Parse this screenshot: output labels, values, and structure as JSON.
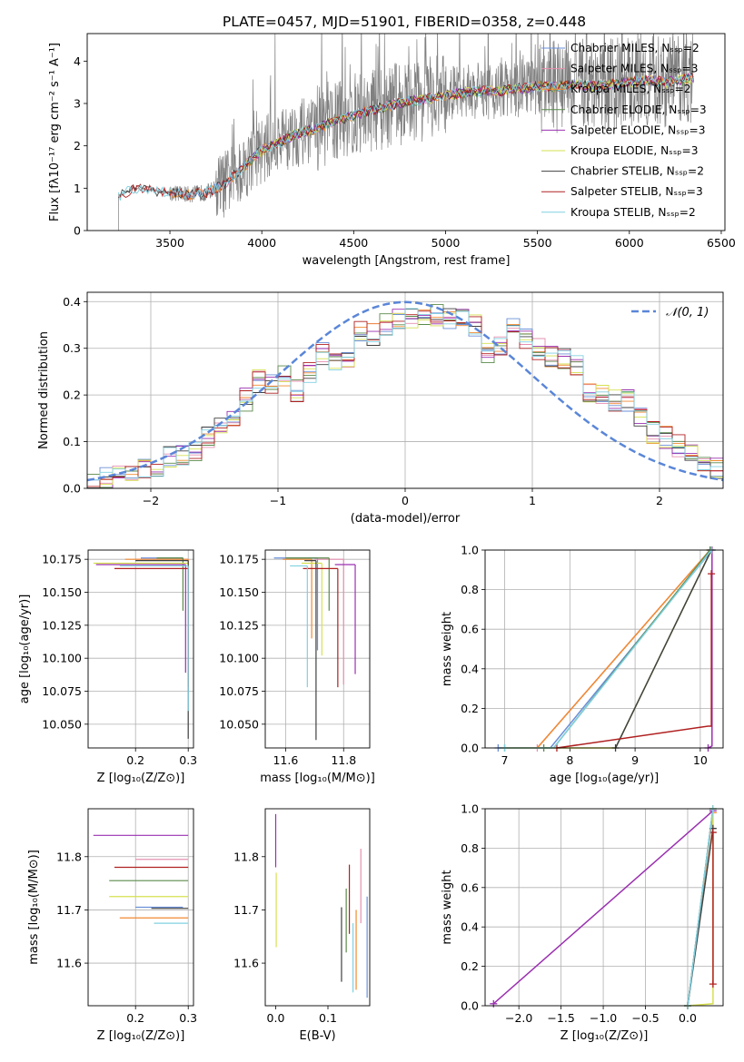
{
  "chart_data": [
    {
      "id": "spectrum",
      "type": "line",
      "title": "PLATE=0457, MJD=51901, FIBERID=0358, z=0.448",
      "xlabel": "wavelength [Angstrom, rest frame]",
      "ylabel": "Flux [fλ10⁻¹⁷ erg cm⁻² s⁻¹ A⁻¹]",
      "xlim": [
        3050,
        6520
      ],
      "ylim": [
        0,
        4.65
      ],
      "xticks": [
        3500,
        4000,
        4500,
        5000,
        5500,
        6000,
        6500
      ],
      "yticks": [
        0,
        1,
        2,
        3,
        4
      ],
      "grid": false,
      "legend_position": "right",
      "series": [
        {
          "name": "Chabrier MILES, Nₛₛₚ=2",
          "color": "#6a8fd8",
          "start": 3500,
          "end": 6350
        },
        {
          "name": "Salpeter MILES, Nₛₛₚ=3",
          "color": "#e690b0",
          "start": 3500,
          "end": 6350
        },
        {
          "name": "Kroupa MILES, Nₛₛₚ=2",
          "color": "#f08a30",
          "start": 3500,
          "end": 6350
        },
        {
          "name": "Chabrier ELODIE, Nₛₛₚ=3",
          "color": "#5a8a4a",
          "start": 3900,
          "end": 6350
        },
        {
          "name": "Salpeter ELODIE, Nₛₛₚ=3",
          "color": "#9a30b0",
          "start": 3900,
          "end": 6350
        },
        {
          "name": "Kroupa ELODIE, Nₛₛₚ=3",
          "color": "#d6e050",
          "start": 3900,
          "end": 6350
        },
        {
          "name": "Chabrier STELIB, Nₛₛₚ=2",
          "color": "#404040",
          "start": 3220,
          "end": 6350
        },
        {
          "name": "Salpeter STELIB, Nₛₛₚ=3",
          "color": "#b02020",
          "start": 3220,
          "end": 6350
        },
        {
          "name": "Kroupa STELIB, Nₛₛₚ=2",
          "color": "#80d0e0",
          "start": 3220,
          "end": 6350
        }
      ],
      "model_continuum": {
        "x": [
          3220,
          3300,
          3400,
          3500,
          3600,
          3700,
          3800,
          3900,
          4000,
          4100,
          4200,
          4300,
          4400,
          4500,
          4600,
          4700,
          4800,
          4900,
          5000,
          5100,
          5200,
          5300,
          5400,
          5500,
          5600,
          5700,
          5800,
          5900,
          6000,
          6100,
          6200,
          6350
        ],
        "y": [
          0.8,
          1.0,
          0.95,
          0.9,
          0.85,
          0.9,
          1.1,
          1.5,
          1.9,
          2.1,
          2.3,
          2.4,
          2.6,
          2.7,
          2.85,
          2.95,
          3.05,
          3.1,
          3.2,
          3.25,
          3.3,
          3.3,
          3.35,
          3.4,
          3.4,
          3.45,
          3.4,
          3.45,
          3.5,
          3.55,
          3.5,
          3.6
        ]
      },
      "data_spectrum": {
        "name": "",
        "color": "#808080",
        "start": 3220,
        "end": 6350
      }
    },
    {
      "id": "residuals",
      "type": "line",
      "xlabel": "(data-model)/error",
      "ylabel": "Normed distribution",
      "xlim": [
        -2.5,
        2.5
      ],
      "ylim": [
        0,
        0.42
      ],
      "xticks": [
        -2,
        -1,
        0,
        1,
        2
      ],
      "yticks": [
        0.0,
        0.1,
        0.2,
        0.3,
        0.4
      ],
      "grid": true,
      "legend_position": "top-right",
      "legend": "𝒩(0, 1)",
      "gaussian": {
        "mean": 0,
        "sigma": 1,
        "color": "#5a86d8"
      },
      "bin_width": 0.1,
      "bin_start": -2.5,
      "base_histogram": [
        0.02,
        0.02,
        0.03,
        0.03,
        0.04,
        0.05,
        0.07,
        0.07,
        0.08,
        0.11,
        0.13,
        0.14,
        0.19,
        0.23,
        0.22,
        0.24,
        0.21,
        0.25,
        0.29,
        0.27,
        0.28,
        0.34,
        0.33,
        0.35,
        0.36,
        0.36,
        0.37,
        0.37,
        0.36,
        0.36,
        0.35,
        0.29,
        0.3,
        0.34,
        0.32,
        0.3,
        0.28,
        0.28,
        0.26,
        0.21,
        0.2,
        0.19,
        0.19,
        0.15,
        0.12,
        0.11,
        0.09,
        0.08,
        0.06,
        0.04
      ]
    },
    {
      "id": "age-vs-Z",
      "type": "scatter",
      "xlabel": "Z [log₁₀(Z/Z⊙)]",
      "ylabel": "age  [log₁₀(age/yr)]",
      "xlim": [
        0.11,
        0.31
      ],
      "ylim": [
        10.032,
        10.182
      ],
      "xticks": [
        0.2,
        0.3
      ],
      "yticks": [
        10.05,
        10.075,
        10.1,
        10.125,
        10.15,
        10.175
      ],
      "grid": true,
      "points": [
        {
          "x": 0.29,
          "y": 10.176,
          "xerr_lo": 0.08,
          "yerr_lo": 0.001,
          "color": "#6a8fd8"
        },
        {
          "x": 0.3,
          "y": 10.175,
          "xerr_lo": 0.1,
          "yerr_lo": 0.1,
          "color": "#e690b0"
        },
        {
          "x": 0.3,
          "y": 10.175,
          "xerr_lo": 0.12,
          "yerr_lo": 0.06,
          "color": "#f08a30"
        },
        {
          "x": 0.29,
          "y": 10.176,
          "xerr_lo": 0.05,
          "yerr_lo": 0.04,
          "color": "#5a8a4a"
        },
        {
          "x": 0.295,
          "y": 10.171,
          "xerr_lo": 0.17,
          "yerr_lo": 0.082,
          "color": "#9a30b0"
        },
        {
          "x": 0.3,
          "y": 10.172,
          "xerr_lo": 0.18,
          "yerr_lo": 0.09,
          "color": "#d6e050"
        },
        {
          "x": 0.3,
          "y": 10.174,
          "xerr_lo": 0.1,
          "yerr_lo": 0.135,
          "color": "#404040"
        },
        {
          "x": 0.3,
          "y": 10.168,
          "xerr_lo": 0.14,
          "yerr_lo": 0.09,
          "color": "#b02020"
        },
        {
          "x": 0.3,
          "y": 10.17,
          "xerr_lo": 0.13,
          "yerr_lo": 0.11,
          "color": "#80d0e0"
        }
      ]
    },
    {
      "id": "age-vs-mass",
      "type": "scatter",
      "xlabel": "mass [log₁₀(M/M⊙)]",
      "xlim": [
        11.53,
        11.89
      ],
      "ylim": [
        10.032,
        10.182
      ],
      "xticks": [
        11.6,
        11.8
      ],
      "yticks": [
        10.05,
        10.075,
        10.1,
        10.125,
        10.15,
        10.175
      ],
      "grid": true,
      "points": [
        {
          "x": 11.71,
          "y": 10.176,
          "xerr_lo": 0.15,
          "yerr_lo": 0.07,
          "color": "#6a8fd8"
        },
        {
          "x": 11.8,
          "y": 10.175,
          "xerr_lo": 0.1,
          "yerr_lo": 0.095,
          "color": "#e690b0"
        },
        {
          "x": 11.69,
          "y": 10.175,
          "xerr_lo": 0.1,
          "yerr_lo": 0.06,
          "color": "#f08a30"
        },
        {
          "x": 11.75,
          "y": 10.176,
          "xerr_lo": 0.15,
          "yerr_lo": 0.04,
          "color": "#5a8a4a"
        },
        {
          "x": 11.84,
          "y": 10.171,
          "xerr_lo": 0.07,
          "yerr_lo": 0.083,
          "color": "#9a30b0"
        },
        {
          "x": 11.725,
          "y": 10.172,
          "xerr_lo": 0.07,
          "yerr_lo": 0.07,
          "color": "#d6e050"
        },
        {
          "x": 11.705,
          "y": 10.174,
          "xerr_lo": 0.04,
          "yerr_lo": 0.136,
          "color": "#404040"
        },
        {
          "x": 11.78,
          "y": 10.168,
          "xerr_lo": 0.12,
          "yerr_lo": 0.09,
          "color": "#b02020"
        },
        {
          "x": 11.675,
          "y": 10.17,
          "xerr_lo": 0.06,
          "yerr_lo": 0.092,
          "color": "#80d0e0"
        }
      ]
    },
    {
      "id": "massweight-vs-age",
      "type": "line",
      "xlabel": "age  [log₁₀(age/yr)]",
      "ylabel": "mass weight",
      "xlim": [
        6.7,
        10.35
      ],
      "ylim": [
        0,
        1.0
      ],
      "xticks": [
        7,
        8,
        9,
        10
      ],
      "yticks": [
        0.0,
        0.2,
        0.4,
        0.6,
        0.8,
        1.0
      ],
      "grid": true,
      "series": [
        {
          "name": "Chabrier MILES",
          "color": "#6a8fd8",
          "x": [
            6.9,
            7.7,
            10.18
          ],
          "y": [
            0,
            0,
            1.0
          ]
        },
        {
          "name": "Salpeter MILES",
          "color": "#e690b0",
          "x": [
            7.5,
            10.15
          ],
          "y": [
            0,
            1.0
          ]
        },
        {
          "name": "Kroupa MILES",
          "color": "#f08a30",
          "x": [
            7.0,
            7.5,
            10.15
          ],
          "y": [
            0,
            0,
            1.0
          ]
        },
        {
          "name": "Chabrier ELODIE",
          "color": "#5a8a4a",
          "x": [
            7.6,
            7.75,
            10.15
          ],
          "y": [
            0,
            0,
            1.0
          ]
        },
        {
          "name": "Salpeter ELODIE",
          "color": "#9a30b0",
          "x": [
            10.12,
            10.18,
            10.18
          ],
          "y": [
            0,
            0.01,
            1.0
          ]
        },
        {
          "name": "Kroupa ELODIE",
          "color": "#d6e050",
          "x": [
            7.0,
            8.7,
            10.17
          ],
          "y": [
            0,
            0,
            1.0
          ]
        },
        {
          "name": "Chabrier STELIB",
          "color": "#404040",
          "x": [
            8.7,
            10.17
          ],
          "y": [
            0,
            1.0
          ]
        },
        {
          "name": "Salpeter STELIB",
          "color": "#b02020",
          "x": [
            7.8,
            10.12,
            10.17,
            10.17
          ],
          "y": [
            0,
            0.11,
            0.11,
            0.88
          ]
        },
        {
          "name": "Kroupa STELIB",
          "color": "#80d0e0",
          "x": [
            7.0,
            7.75,
            10.17
          ],
          "y": [
            0,
            0,
            1.0
          ]
        }
      ]
    },
    {
      "id": "mass-vs-Z",
      "type": "scatter",
      "xlabel": "Z [log₁₀(Z/Z⊙)]",
      "ylabel": "mass [log₁₀(M/M⊙)]",
      "xlim": [
        0.11,
        0.31
      ],
      "ylim": [
        11.52,
        11.89
      ],
      "xticks": [
        0.2,
        0.3
      ],
      "yticks": [
        11.6,
        11.7,
        11.8
      ],
      "grid": true,
      "points": [
        {
          "x": 0.29,
          "y": 11.705,
          "xerr_lo": 0.09,
          "yerr_lo": 0.0,
          "color": "#6a8fd8"
        },
        {
          "x": 0.3,
          "y": 11.795,
          "xerr_lo": 0.1,
          "yerr_lo": 0.0,
          "color": "#e690b0"
        },
        {
          "x": 0.3,
          "y": 11.685,
          "xerr_lo": 0.13,
          "yerr_lo": 0.0,
          "color": "#f08a30"
        },
        {
          "x": 0.3,
          "y": 11.755,
          "xerr_lo": 0.15,
          "yerr_lo": 0.0,
          "color": "#5a8a4a"
        },
        {
          "x": 0.3,
          "y": 11.84,
          "xerr_lo": 0.18,
          "yerr_lo": 0.0,
          "color": "#9a30b0"
        },
        {
          "x": 0.3,
          "y": 11.725,
          "xerr_lo": 0.15,
          "yerr_lo": 0.0,
          "color": "#d6e050"
        },
        {
          "x": 0.3,
          "y": 11.703,
          "xerr_lo": 0.07,
          "yerr_lo": 0.0,
          "color": "#404040"
        },
        {
          "x": 0.3,
          "y": 11.78,
          "xerr_lo": 0.14,
          "yerr_lo": 0.0,
          "color": "#b02020"
        },
        {
          "x": 0.3,
          "y": 11.675,
          "xerr_lo": 0.065,
          "yerr_lo": 0.0,
          "color": "#80d0e0"
        }
      ]
    },
    {
      "id": "mass-vs-EBV",
      "type": "scatter",
      "xlabel": "E(B-V)",
      "xlim": [
        -0.02,
        0.18
      ],
      "ylim": [
        11.52,
        11.89
      ],
      "xticks": [
        0.0,
        0.1
      ],
      "yticks": [
        11.6,
        11.7,
        11.8
      ],
      "grid": false,
      "points": [
        {
          "x": 0.175,
          "y": 11.63,
          "yerr": 0.095,
          "color": "#6a8fd8"
        },
        {
          "x": 0.163,
          "y": 11.745,
          "yerr": 0.07,
          "color": "#e690b0"
        },
        {
          "x": 0.154,
          "y": 11.625,
          "yerr": 0.075,
          "color": "#f08a30"
        },
        {
          "x": 0.135,
          "y": 11.68,
          "yerr": 0.06,
          "color": "#5a8a4a"
        },
        {
          "x": 0.0,
          "y": 11.83,
          "yerr": 0.05,
          "color": "#9a30b0"
        },
        {
          "x": 0.001,
          "y": 11.7,
          "yerr": 0.07,
          "color": "#d6e050"
        },
        {
          "x": 0.126,
          "y": 11.635,
          "yerr": 0.07,
          "color": "#404040"
        },
        {
          "x": 0.141,
          "y": 11.72,
          "yerr": 0.065,
          "color": "#b02020"
        },
        {
          "x": 0.148,
          "y": 11.61,
          "yerr": 0.065,
          "color": "#80d0e0"
        }
      ]
    },
    {
      "id": "massweight-vs-Z",
      "type": "line",
      "xlabel": "Z [log₁₀(Z/Z⊙)]",
      "ylabel": "mass weight",
      "xlim": [
        -2.4,
        0.42
      ],
      "ylim": [
        0,
        1.0
      ],
      "xticks": [
        -2.0,
        -1.5,
        -1.0,
        -0.5,
        0.0
      ],
      "yticks": [
        0.0,
        0.2,
        0.4,
        0.6,
        0.8,
        1.0
      ],
      "grid": true,
      "series": [
        {
          "name": "Chabrier MILES",
          "color": "#6a8fd8",
          "x": [
            0.0,
            0.3
          ],
          "y": [
            0,
            1.0
          ]
        },
        {
          "name": "Salpeter MILES",
          "color": "#e690b0",
          "x": [
            0.0,
            0.3
          ],
          "y": [
            0,
            0.98
          ]
        },
        {
          "name": "Kroupa MILES",
          "color": "#f08a30",
          "x": [
            0.0,
            0.3
          ],
          "y": [
            0,
            0.98
          ]
        },
        {
          "name": "Chabrier ELODIE",
          "color": "#5a8a4a",
          "x": [
            0.0,
            0.3
          ],
          "y": [
            0,
            1.0
          ]
        },
        {
          "name": "Salpeter ELODIE",
          "color": "#9a30b0",
          "x": [
            -2.3,
            0.3
          ],
          "y": [
            0.01,
            0.99
          ]
        },
        {
          "name": "Kroupa ELODIE",
          "color": "#d6e050",
          "x": [
            0.0,
            0.3,
            0.3
          ],
          "y": [
            0,
            0.01,
            1.0
          ]
        },
        {
          "name": "Chabrier STELIB",
          "color": "#404040",
          "x": [
            0.0,
            0.3
          ],
          "y": [
            0,
            0.9
          ]
        },
        {
          "name": "Salpeter STELIB",
          "color": "#b02020",
          "x": [
            0.3,
            0.3
          ],
          "y": [
            0.11,
            0.88
          ]
        },
        {
          "name": "Kroupa STELIB",
          "color": "#80d0e0",
          "x": [
            0.0,
            0.3
          ],
          "y": [
            0,
            1.0
          ]
        }
      ]
    }
  ]
}
